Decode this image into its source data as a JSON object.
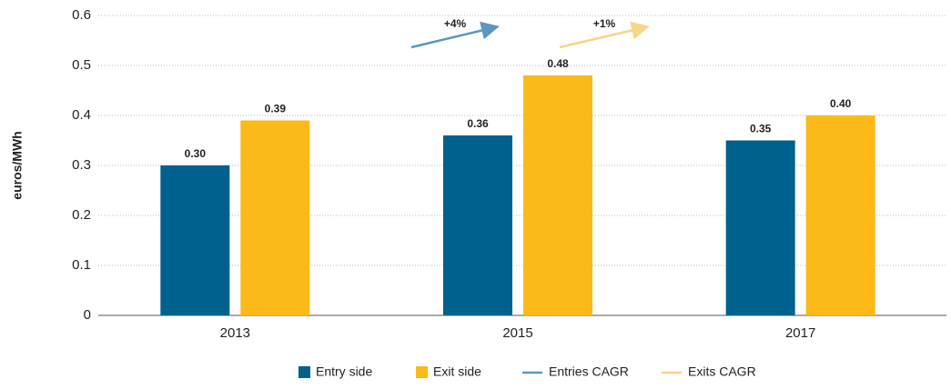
{
  "chart_data": {
    "type": "bar",
    "y_label": "euros/MWh",
    "categories": [
      "2013",
      "2015",
      "2017"
    ],
    "series": [
      {
        "name": "Entry side",
        "color": "#00618f",
        "values": [
          0.3,
          0.36,
          0.35
        ],
        "value_labels": [
          "0.30",
          "0.36",
          "0.35"
        ]
      },
      {
        "name": "Exit side",
        "color": "#fbb91a",
        "values": [
          0.39,
          0.48,
          0.4
        ],
        "value_labels": [
          "0.39",
          "0.48",
          "0.40"
        ]
      }
    ],
    "cagr": [
      {
        "name": "Entries CAGR",
        "label": "+4%",
        "color": "#5b97c0"
      },
      {
        "name": "Exits CAGR",
        "label": "+1%",
        "color": "#f7d58a"
      }
    ],
    "ylim": [
      0,
      0.6
    ],
    "yticks": [
      0,
      0.1,
      0.2,
      0.3,
      0.4,
      0.5,
      0.6
    ],
    "grid": true
  }
}
